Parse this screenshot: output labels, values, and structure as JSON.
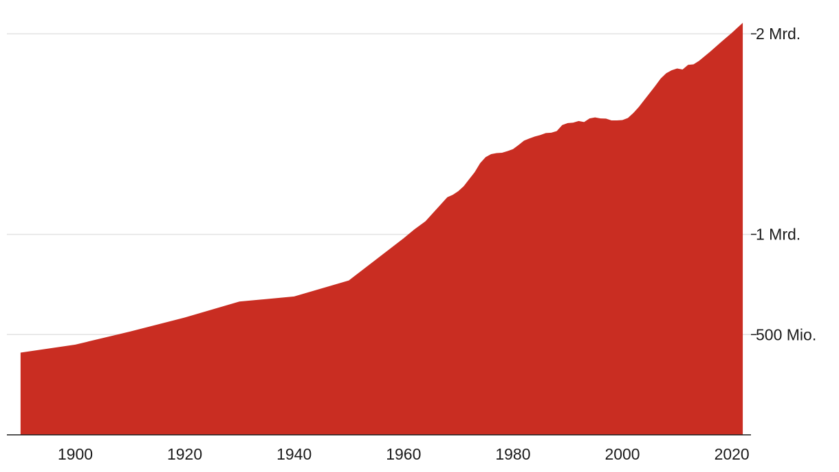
{
  "chart_data": {
    "type": "area",
    "title": "",
    "xlabel": "",
    "ylabel": "",
    "grid": true,
    "color": "#c92d22",
    "xlim": [
      1887.5,
      2023.5
    ],
    "ylim": [
      0,
      2100000000
    ],
    "xticks": [
      {
        "value": 1900,
        "label": "1900"
      },
      {
        "value": 1920,
        "label": "1920"
      },
      {
        "value": 1940,
        "label": "1940"
      },
      {
        "value": 1960,
        "label": "1960"
      },
      {
        "value": 1980,
        "label": "1980"
      },
      {
        "value": 2000,
        "label": "2000"
      },
      {
        "value": 2020,
        "label": "2020"
      }
    ],
    "yticks": [
      {
        "value": 500000000,
        "label": "500 Mio."
      },
      {
        "value": 1000000000,
        "label": "1 Mrd."
      },
      {
        "value": 2000000000,
        "label": "2 Mrd."
      }
    ],
    "series": [
      {
        "x": [
          1890,
          1900,
          1910,
          1920,
          1930,
          1940,
          1950,
          1955,
          1960,
          1962,
          1964,
          1966,
          1968,
          1969,
          1970,
          1971,
          1972,
          1973,
          1974,
          1975,
          1976,
          1977,
          1978,
          1979,
          1980,
          1981,
          1982,
          1983,
          1984,
          1985,
          1986,
          1987,
          1988,
          1989,
          1990,
          1991,
          1992,
          1993,
          1994,
          1995,
          1996,
          1997,
          1998,
          1999,
          2000,
          2001,
          2002,
          2003,
          2004,
          2005,
          2006,
          2007,
          2008,
          2009,
          2010,
          2011,
          2012,
          2013,
          2014,
          2016,
          2018,
          2020,
          2022
        ],
        "values": [
          410000000,
          450000000,
          515000000,
          585000000,
          665000000,
          690000000,
          770000000,
          875000000,
          980000000,
          1025000000,
          1065000000,
          1125000000,
          1185000000,
          1197000000,
          1215000000,
          1240000000,
          1275000000,
          1310000000,
          1355000000,
          1385000000,
          1400000000,
          1405000000,
          1407000000,
          1415000000,
          1425000000,
          1445000000,
          1467000000,
          1478000000,
          1488000000,
          1495000000,
          1505000000,
          1507000000,
          1515000000,
          1545000000,
          1555000000,
          1557000000,
          1565000000,
          1560000000,
          1578000000,
          1583000000,
          1578000000,
          1577000000,
          1568000000,
          1568000000,
          1570000000,
          1580000000,
          1605000000,
          1635000000,
          1670000000,
          1705000000,
          1740000000,
          1777000000,
          1803000000,
          1818000000,
          1827000000,
          1822000000,
          1845000000,
          1848000000,
          1865000000,
          1910000000,
          1958000000,
          2005000000,
          2055000000
        ]
      }
    ]
  }
}
